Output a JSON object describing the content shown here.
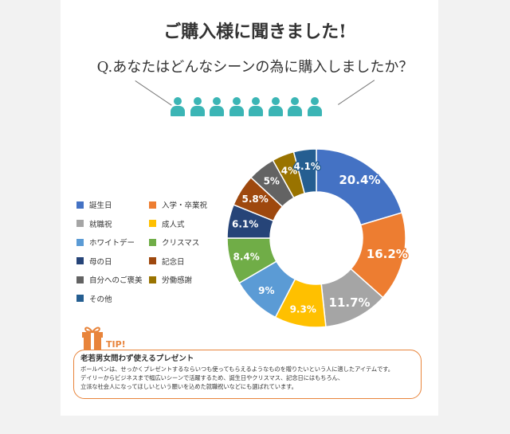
{
  "title": "ご購入様に聞きました!",
  "question": "Q.あなたはどんなシーンの為に購入しましたか？",
  "people_icon": "person-icon",
  "people_count": 8,
  "chart_data": {
    "type": "pie",
    "categories": [
      "誕生日",
      "入学・卒業祝",
      "就職祝",
      "成人式",
      "ホワイトデー",
      "クリスマス",
      "母の日",
      "記念日",
      "自分へのご褒美",
      "労働感謝",
      "その他"
    ],
    "values": [
      20.4,
      16.2,
      11.7,
      9.3,
      9,
      8.4,
      6.1,
      5.8,
      5,
      4,
      4.1
    ],
    "labels": [
      "20.4%",
      "16.2%",
      "11.7%",
      "9.3%",
      "9%",
      "8.4%",
      "6.1%",
      "5.8%",
      "5%",
      "4%",
      "4.1%"
    ],
    "colors": [
      "#4472c4",
      "#ed7d31",
      "#a5a5a5",
      "#ffc000",
      "#5b9bd5",
      "#70ad47",
      "#264478",
      "#9e480e",
      "#636363",
      "#997300",
      "#255e91"
    ],
    "donut": true,
    "legend_position": "left"
  },
  "tip": {
    "icon": "gift-icon",
    "label": "TIP!",
    "heading": "老若男女問わず使えるプレゼント",
    "lines": [
      "ボールペンは、せっかくプレゼントするならいつも使ってもらえるようなものを贈りたいという人に適したアイテムです。",
      "デイリーからビジネスまで幅広いシーンで活躍するため、誕生日やクリスマス、記念日にはもちろん、",
      "立派な社会人になってほしいという願いを込めた就職祝いなどにも選ばれています。"
    ]
  }
}
